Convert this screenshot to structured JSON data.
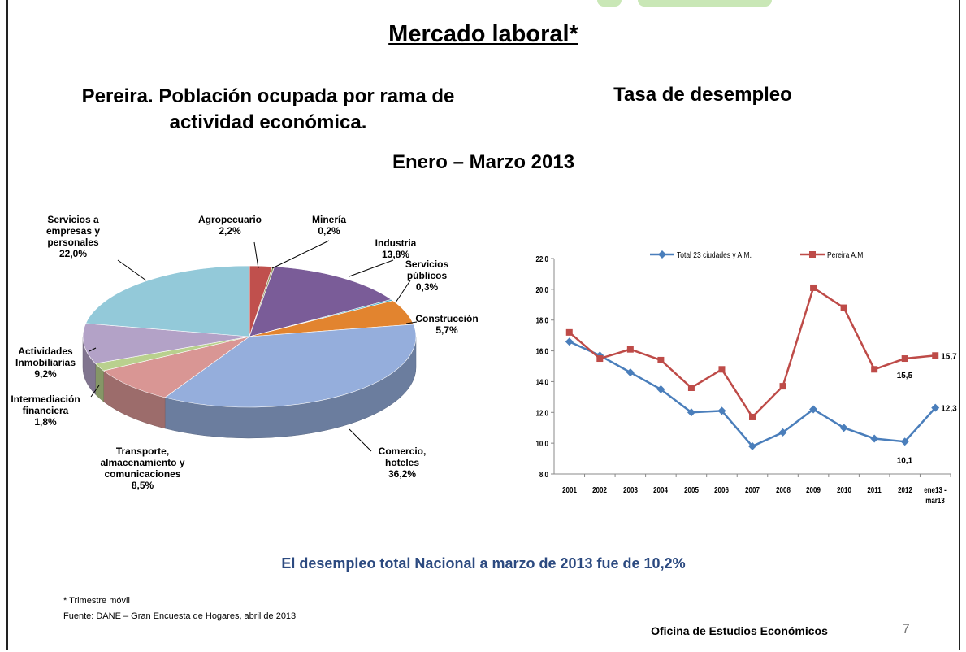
{
  "slide": {
    "title": "Mercado laboral*",
    "period": "Enero – Marzo 2013",
    "highlight": "El desempleo total Nacional a marzo de 2013 fue de 10,2%",
    "footnote": "* Trimestre móvil",
    "source": "Fuente: DANE – Gran Encuesta de Hogares, abril de 2013",
    "office": "Oficina de Estudios Económicos",
    "page_number": 7
  },
  "chart_data": [
    {
      "type": "pie",
      "title": "Pereira. Población ocupada por rama de actividad económica.",
      "categories": [
        "Agropecuario",
        "Minería",
        "Industria",
        "Servicios públicos",
        "Construcción",
        "Comercio, hoteles",
        "Transporte, almacenamiento y comunicaciones",
        "Intermediación financiera",
        "Actividades Inmobiliarias",
        "Servicios a empresas y personales"
      ],
      "values": [
        2.2,
        0.2,
        13.8,
        0.3,
        5.7,
        36.2,
        8.5,
        1.8,
        9.2,
        22.0
      ],
      "value_labels": [
        "2,2%",
        "0,2%",
        "13,8%",
        "0,3%",
        "5,7%",
        "36,2%",
        "8,5%",
        "1,8%",
        "9,2%",
        "22,0%"
      ],
      "colors": [
        "#c0504d",
        "#9c9a6a",
        "#7a5c98",
        "#4bacc6",
        "#e2842f",
        "#95aedc",
        "#d99694",
        "#b9d08e",
        "#b3a2c7",
        "#93c9d9"
      ],
      "three_d": true
    },
    {
      "type": "line",
      "title": "Tasa de desempleo",
      "categories": [
        "2001",
        "2002",
        "2003",
        "2004",
        "2005",
        "2006",
        "2007",
        "2008",
        "2009",
        "2010",
        "2011",
        "2012",
        "ene13 - mar13"
      ],
      "series": [
        {
          "name": "Total 23 ciudades y A.M.",
          "color": "#4a7ebb",
          "marker": "diamond",
          "values": [
            16.6,
            15.7,
            14.6,
            13.5,
            12.0,
            12.1,
            9.8,
            10.7,
            12.2,
            11.0,
            10.3,
            10.1,
            12.3
          ],
          "value_labels": [
            null,
            null,
            null,
            null,
            null,
            null,
            null,
            null,
            null,
            null,
            null,
            "10,1",
            "12,3"
          ]
        },
        {
          "name": "Pereira A.M",
          "color": "#be4b48",
          "marker": "square",
          "values": [
            17.2,
            15.5,
            16.1,
            15.4,
            13.6,
            14.8,
            11.7,
            13.7,
            20.1,
            18.8,
            14.8,
            15.5,
            15.7
          ],
          "value_labels": [
            null,
            null,
            null,
            null,
            null,
            null,
            null,
            null,
            null,
            null,
            null,
            "15,5",
            "15,7"
          ]
        }
      ],
      "ylim": [
        8,
        22
      ],
      "yticks": [
        {
          "value": 8,
          "label": "8,0"
        },
        {
          "value": 10,
          "label": "10,0"
        },
        {
          "value": 12,
          "label": "12,0"
        },
        {
          "value": 14,
          "label": "14,0"
        },
        {
          "value": 16,
          "label": "16,0"
        },
        {
          "value": 18,
          "label": "18,0"
        },
        {
          "value": 20,
          "label": "20,0"
        },
        {
          "value": 22,
          "label": "22,0"
        }
      ],
      "grid": false,
      "legend": "top"
    }
  ]
}
